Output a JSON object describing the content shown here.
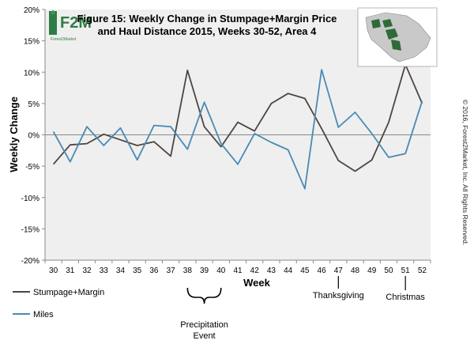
{
  "chart_data": {
    "type": "line",
    "title_line1": "Figure 15: Weekly Change in Stumpage+Margin Price",
    "title_line2": "and Haul Distance 2015, Weeks 30-52, Area 4",
    "xlabel": "Week",
    "ylabel": "Weekly Change",
    "ylim": [
      -20,
      20
    ],
    "yticks": [
      "-20%",
      "-15%",
      "-10%",
      "-5%",
      "0%",
      "5%",
      "10%",
      "15%",
      "20%"
    ],
    "ytick_values": [
      -20,
      -15,
      -10,
      -5,
      0,
      5,
      10,
      15,
      20
    ],
    "x": [
      30,
      31,
      32,
      33,
      34,
      35,
      36,
      37,
      38,
      39,
      40,
      41,
      42,
      43,
      44,
      45,
      46,
      47,
      48,
      49,
      50,
      51,
      52
    ],
    "series": [
      {
        "name": "Stumpage+Margin",
        "color": "#4d4540",
        "values": [
          -4.7,
          -1.6,
          -1.4,
          0.1,
          -0.8,
          -1.7,
          -1.1,
          -3.4,
          10.3,
          1.3,
          -1.9,
          2.0,
          0.6,
          5.0,
          6.6,
          5.8,
          1.0,
          -4.1,
          -5.8,
          -4.0,
          2.0,
          11.2,
          5.0
        ]
      },
      {
        "name": "Miles",
        "color": "#4a8ab3",
        "values": [
          0.5,
          -4.3,
          1.3,
          -1.7,
          1.1,
          -4.0,
          1.5,
          1.3,
          -2.3,
          5.2,
          -1.4,
          -4.7,
          0.2,
          -1.2,
          -2.4,
          -8.6,
          10.4,
          1.2,
          3.6,
          0.2,
          -3.6,
          -3.0,
          5.4
        ]
      }
    ],
    "grid": false,
    "legend_placement": "bottom-left",
    "annotations": [
      {
        "text_lines": [
          "Precipitation",
          "Event"
        ],
        "weeks": [
          38,
          40
        ]
      },
      {
        "text_lines": [
          "Thanksgiving"
        ],
        "weeks": [
          47
        ]
      },
      {
        "text_lines": [
          "Christmas"
        ],
        "weeks": [
          51
        ]
      }
    ],
    "logo_text": "F2M",
    "logo_subtext": "Forest2Market",
    "copyright": "© 2016, Forest2Market, Inc. All Rights Reserved."
  }
}
